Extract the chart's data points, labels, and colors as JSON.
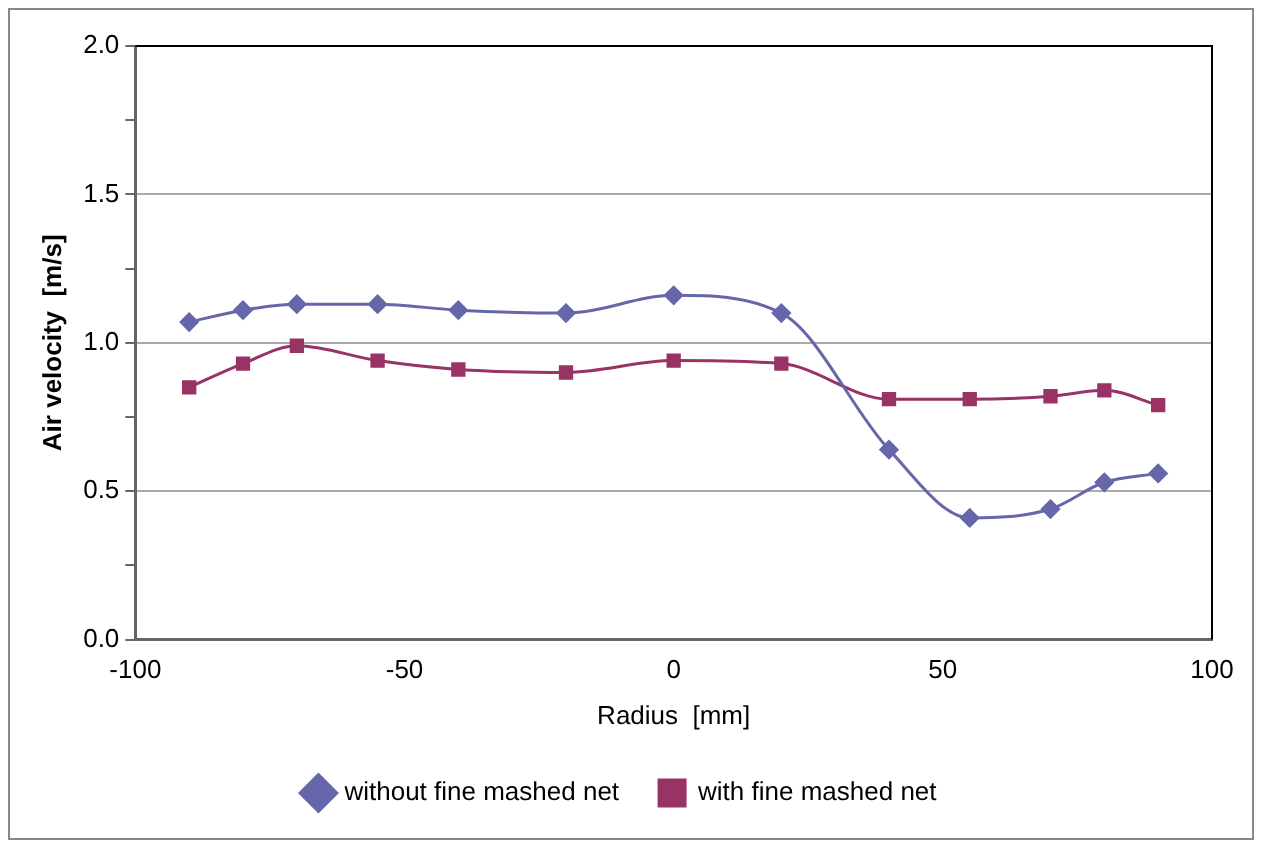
{
  "chart_data": {
    "type": "line",
    "xlabel": "Radius  [mm]",
    "ylabel": "Air velocity  [m/s]",
    "x": [
      -90,
      -80,
      -70,
      -55,
      -40,
      -20,
      0,
      20,
      40,
      55,
      70,
      80,
      90
    ],
    "series": [
      {
        "name": "without fine mashed net",
        "color": "#6666aa",
        "marker": "diamond",
        "values": [
          1.07,
          1.11,
          1.13,
          1.13,
          1.11,
          1.1,
          1.16,
          1.1,
          0.64,
          0.41,
          0.44,
          0.53,
          0.56
        ]
      },
      {
        "name": "with fine mashed net",
        "color": "#993366",
        "marker": "square",
        "values": [
          0.85,
          0.93,
          0.99,
          0.94,
          0.91,
          0.9,
          0.94,
          0.93,
          0.81,
          0.81,
          0.82,
          0.84,
          0.79
        ]
      }
    ],
    "xlim": [
      -100,
      100
    ],
    "xticks": [
      -100,
      -50,
      0,
      50,
      100
    ],
    "ylim": [
      0,
      2
    ],
    "yticks": [
      {
        "value": 0,
        "label": "0.0"
      },
      {
        "value": 0.25,
        "label": null
      },
      {
        "value": 0.5,
        "label": "0.5"
      },
      {
        "value": 0.75,
        "label": null
      },
      {
        "value": 1,
        "label": "1.0"
      },
      {
        "value": 1.25,
        "label": null
      },
      {
        "value": 1.5,
        "label": "1.5"
      },
      {
        "value": 1.75,
        "label": null
      },
      {
        "value": 2,
        "label": "2.0"
      }
    ],
    "grid": "y",
    "legend": "bottom",
    "line_style": "solid"
  }
}
